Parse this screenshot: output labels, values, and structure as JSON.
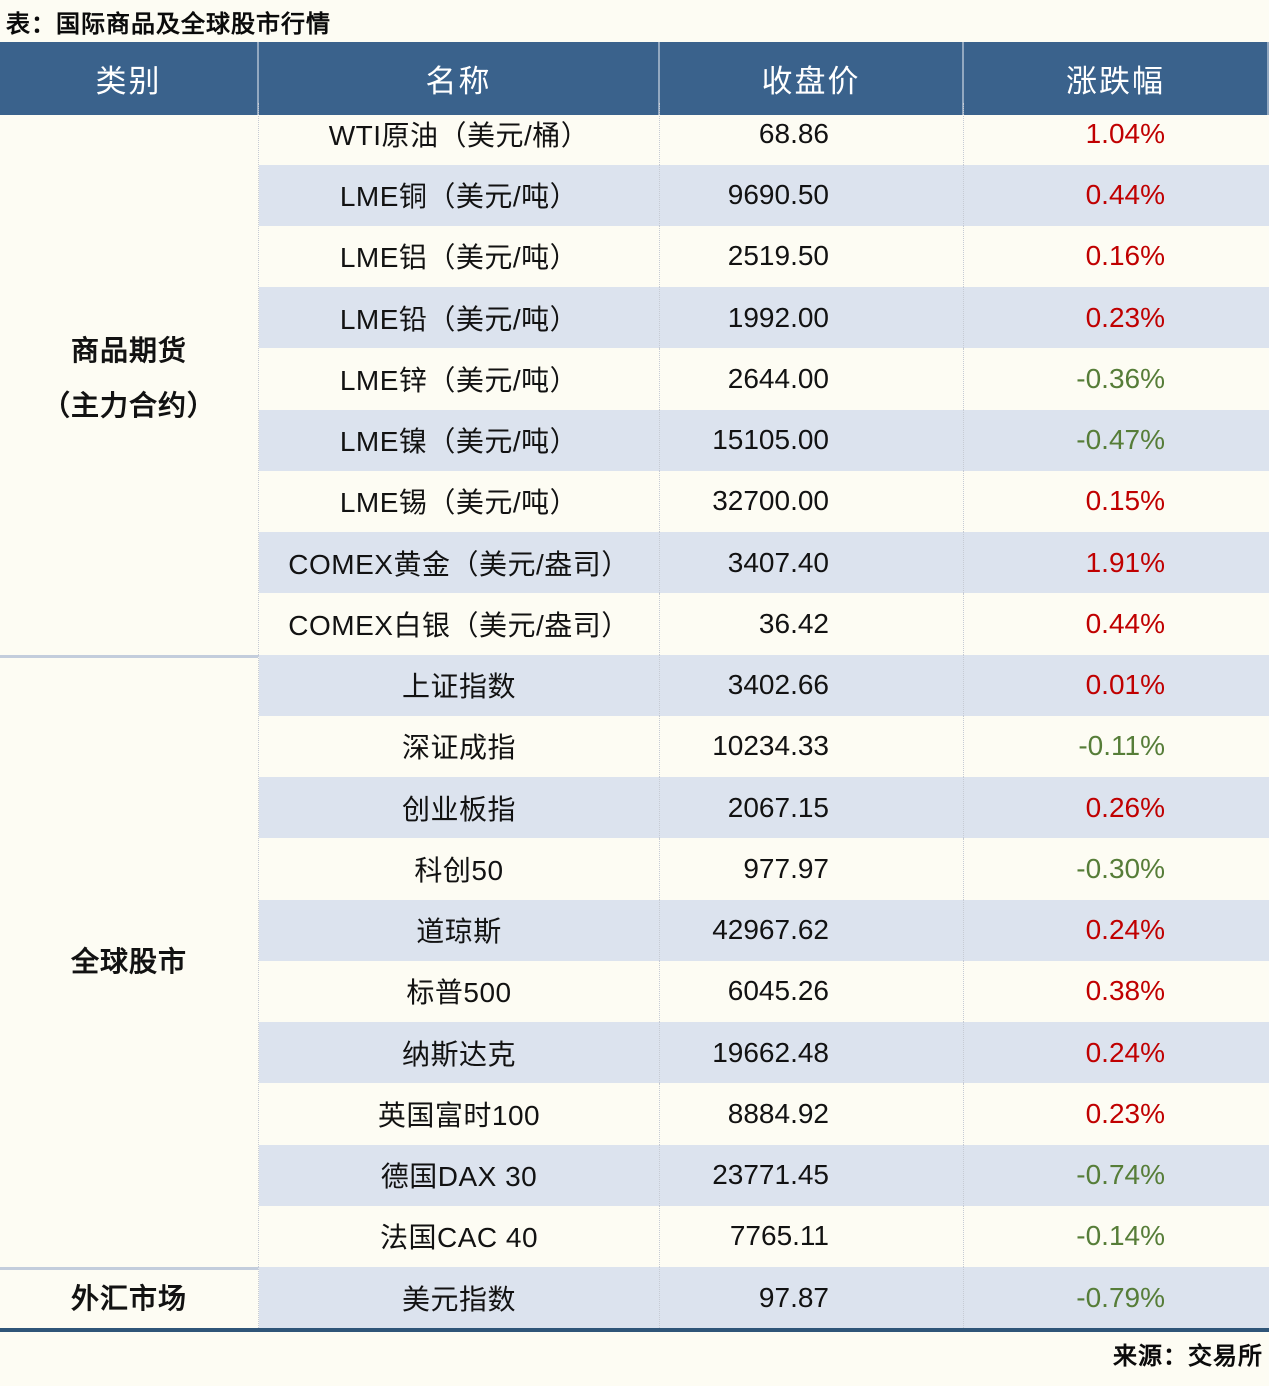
{
  "title": "表：国际商品及全球股市行情",
  "source": "来源：交易所",
  "colors": {
    "header_bg": "#3a628c",
    "header_text": "#ffffff",
    "stripe_row": "#dce3ee",
    "light_row": "#fdfcf3",
    "up_red": "#c00000",
    "down_green": "#567d38",
    "bottom_border": "#2f5578",
    "section_divider": "#c3cddc"
  },
  "chart_data": {
    "type": "table",
    "title": "表：国际商品及全球股市行情",
    "source": "来源：交易所",
    "columns": [
      "类别",
      "名称",
      "收盘价",
      "涨跌幅"
    ],
    "groups": [
      {
        "category_lines": [
          "商品期货",
          "（主力合约）"
        ],
        "rows": [
          {
            "name": "WTI原油（美元/桶）",
            "close": "68.86",
            "change": "1.04%",
            "direction": "up"
          },
          {
            "name": "LME铜（美元/吨）",
            "close": "9690.50",
            "change": "0.44%",
            "direction": "up"
          },
          {
            "name": "LME铝（美元/吨）",
            "close": "2519.50",
            "change": "0.16%",
            "direction": "up"
          },
          {
            "name": "LME铅（美元/吨）",
            "close": "1992.00",
            "change": "0.23%",
            "direction": "up"
          },
          {
            "name": "LME锌（美元/吨）",
            "close": "2644.00",
            "change": "-0.36%",
            "direction": "down"
          },
          {
            "name": "LME镍（美元/吨）",
            "close": "15105.00",
            "change": "-0.47%",
            "direction": "down"
          },
          {
            "name": "LME锡（美元/吨）",
            "close": "32700.00",
            "change": "0.15%",
            "direction": "up"
          },
          {
            "name": "COMEX黄金（美元/盎司）",
            "close": "3407.40",
            "change": "1.91%",
            "direction": "up"
          },
          {
            "name": "COMEX白银（美元/盎司）",
            "close": "36.42",
            "change": "0.44%",
            "direction": "up"
          }
        ]
      },
      {
        "category_lines": [
          "全球股市"
        ],
        "rows": [
          {
            "name": "上证指数",
            "close": "3402.66",
            "change": "0.01%",
            "direction": "up"
          },
          {
            "name": "深证成指",
            "close": "10234.33",
            "change": "-0.11%",
            "direction": "down"
          },
          {
            "name": "创业板指",
            "close": "2067.15",
            "change": "0.26%",
            "direction": "up"
          },
          {
            "name": "科创50",
            "close": "977.97",
            "change": "-0.30%",
            "direction": "down"
          },
          {
            "name": "道琼斯",
            "close": "42967.62",
            "change": "0.24%",
            "direction": "up"
          },
          {
            "name": "标普500",
            "close": "6045.26",
            "change": "0.38%",
            "direction": "up"
          },
          {
            "name": "纳斯达克",
            "close": "19662.48",
            "change": "0.24%",
            "direction": "up"
          },
          {
            "name": "英国富时100",
            "close": "8884.92",
            "change": "0.23%",
            "direction": "up"
          },
          {
            "name": "德国DAX 30",
            "close": "23771.45",
            "change": "-0.74%",
            "direction": "down"
          },
          {
            "name": "法国CAC 40",
            "close": "7765.11",
            "change": "-0.14%",
            "direction": "down"
          }
        ]
      },
      {
        "category_lines": [
          "外汇市场"
        ],
        "rows": [
          {
            "name": "美元指数",
            "close": "97.87",
            "change": "-0.79%",
            "direction": "down"
          }
        ]
      }
    ]
  }
}
